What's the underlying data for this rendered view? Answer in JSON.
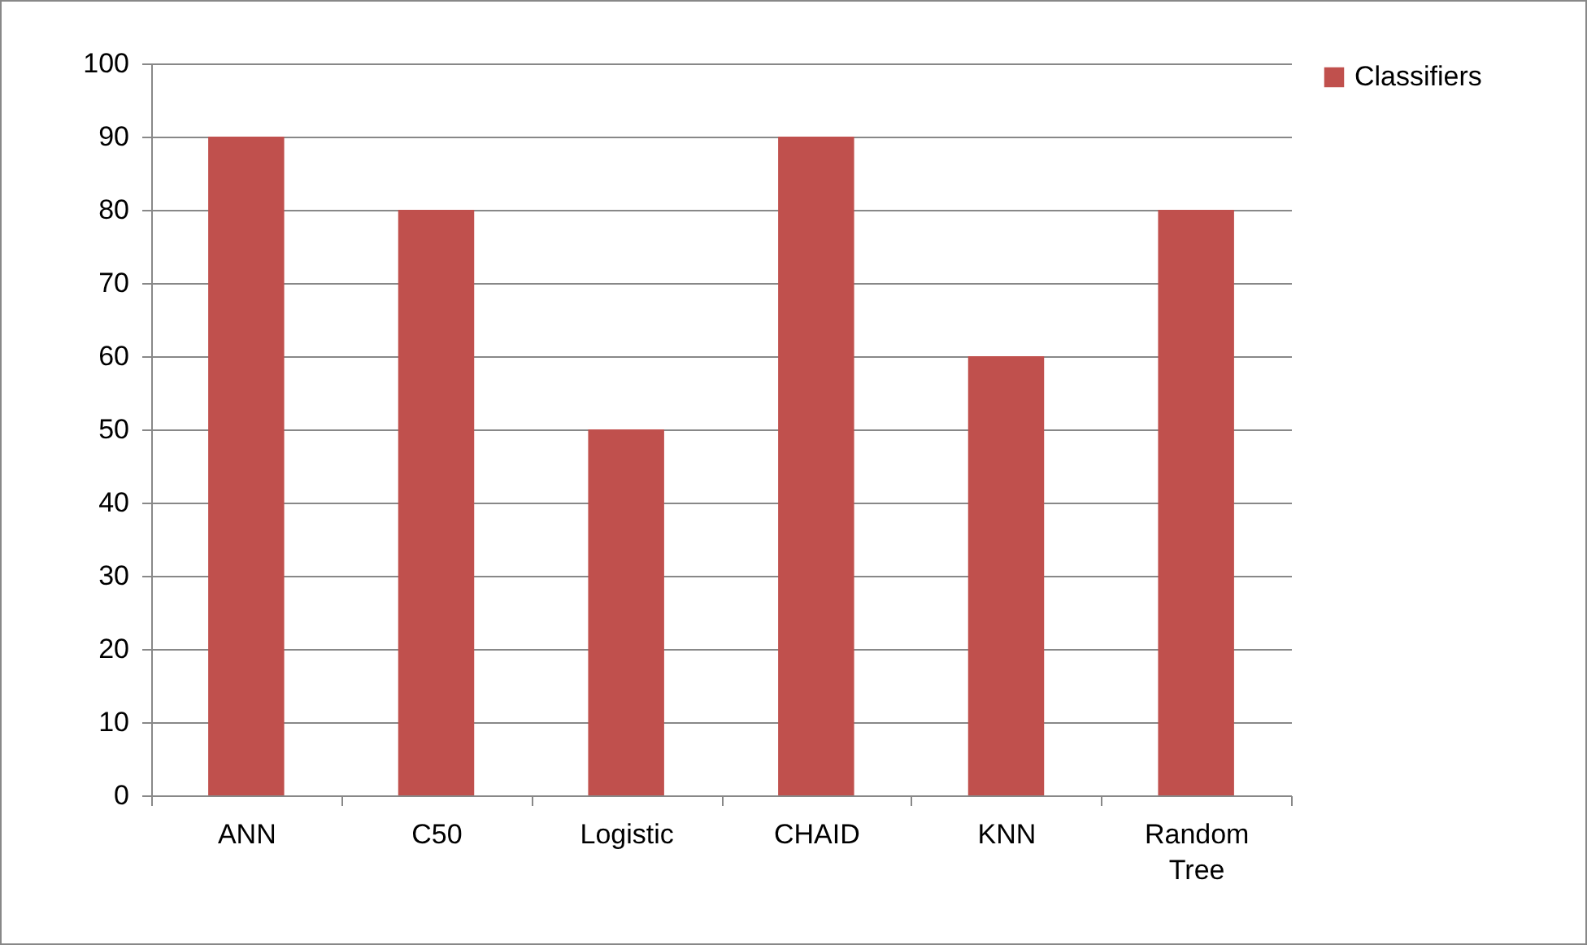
{
  "chart_data": {
    "type": "bar",
    "categories": [
      "ANN",
      "C50",
      "Logistic",
      "CHAID",
      "KNN",
      "Random Tree"
    ],
    "series": [
      {
        "name": "Classifiers",
        "color": "#c0504d",
        "values": [
          90,
          80,
          50,
          90,
          60,
          80
        ]
      }
    ],
    "ylim": [
      0,
      100
    ],
    "yticks": [
      0,
      10,
      20,
      30,
      40,
      50,
      60,
      70,
      80,
      90,
      100
    ],
    "grid": "y",
    "legend": "right"
  }
}
